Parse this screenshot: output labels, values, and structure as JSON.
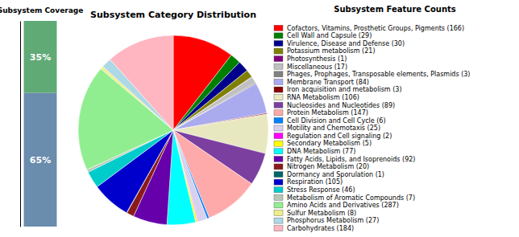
{
  "chart_data": [
    {
      "type": "bar",
      "title": "Subsystem Coverage",
      "stacked": true,
      "categories": [
        null
      ],
      "series": [
        {
          "color": "#6a8cad",
          "values": [
            65
          ],
          "value_labels": [
            "65%"
          ]
        },
        {
          "color": "#5faa75",
          "values": [
            35
          ],
          "value_labels": [
            "35%"
          ]
        }
      ],
      "ylim": [
        0,
        100
      ],
      "data_labels": true,
      "tick_labels": false
    },
    {
      "type": "pie",
      "title": "Subsystem Category Distribution",
      "legend_title": "Subsystem Feature Counts",
      "legend": "right",
      "categories": [
        "Cofactors, Vitamins, Prosthetic Groups, Pigments (166)",
        "Cell Wall and Capsule (29)",
        "Virulence, Disease and Defense (30)",
        "Potassium metabolism (21)",
        "Photosynthesis (1)",
        "Miscellaneous (17)",
        "Phages, Prophages, Transposable elements, Plasmids (3)",
        "Membrane Transport (84)",
        "Iron acquisition and metabolism (3)",
        "RNA Metabolism (106)",
        "Nucleosides and Nucleotides (89)",
        "Protein Metabolism (147)",
        "Cell Division and Cell Cycle (6)",
        "Motility and Chemotaxis (25)",
        "Regulation and Cell signaling (2)",
        "Secondary Metabolism (5)",
        "DNA Metabolism (77)",
        "Fatty Acids, Lipids, and Isoprenoids (92)",
        "Nitrogen Metabolism (20)",
        "Dormancy and Sporulation (1)",
        "Respiration (105)",
        "Stress Response (46)",
        "Metabolism of Aromatic Compounds (7)",
        "Amino Acids and Derivatives (287)",
        "Sulfur Metabolism (8)",
        "Phosphorus Metabolism (27)",
        "Carbohydrates (184)"
      ],
      "values": [
        166,
        29,
        30,
        21,
        1,
        17,
        3,
        84,
        3,
        106,
        89,
        147,
        6,
        25,
        2,
        5,
        77,
        92,
        20,
        1,
        105,
        46,
        7,
        287,
        8,
        27,
        184
      ],
      "colors": [
        "#ff0000",
        "#008000",
        "#00008b",
        "#808000",
        "#800080",
        "#c0c0c0",
        "#808080",
        "#aaaaee",
        "#8b0000",
        "#e8e8c0",
        "#7b3fa0",
        "#ffaaaa",
        "#0080ff",
        "#d8d0f0",
        "#ff00ff",
        "#ffff00",
        "#00ffff",
        "#6600aa",
        "#8b1a1a",
        "#006666",
        "#0000cc",
        "#00cccc",
        "#b8c8b8",
        "#90ee90",
        "#eeee88",
        "#add8e6",
        "#ffb6c1"
      ]
    }
  ]
}
